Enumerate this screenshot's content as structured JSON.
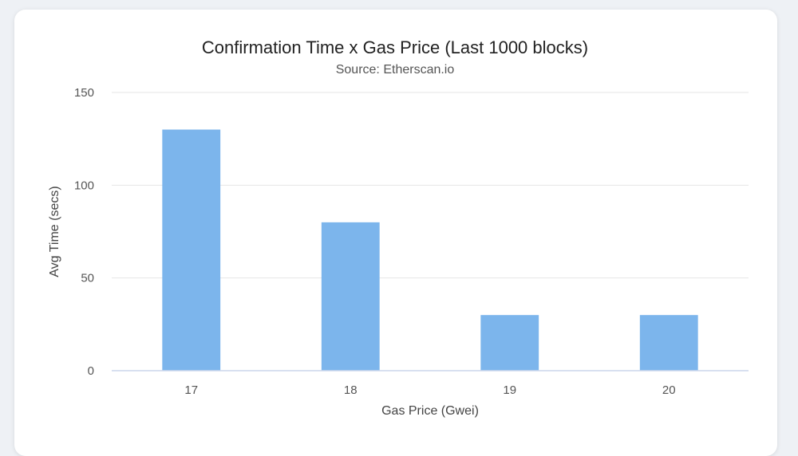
{
  "chart_data": {
    "type": "bar",
    "title": "Confirmation Time x Gas Price (Last 1000 blocks)",
    "subtitle": "Source: Etherscan.io",
    "xlabel": "Gas Price (Gwei)",
    "ylabel": "Avg Time (secs)",
    "categories": [
      "17",
      "18",
      "19",
      "20"
    ],
    "values": [
      130,
      80,
      30,
      30
    ],
    "ylim": [
      0,
      150
    ],
    "yticks": [
      0,
      50,
      100,
      150
    ],
    "grid": true,
    "bar_color": "#7cb5ec",
    "grid_color": "#e6e6e6",
    "axis_color": "#ccd6eb"
  }
}
